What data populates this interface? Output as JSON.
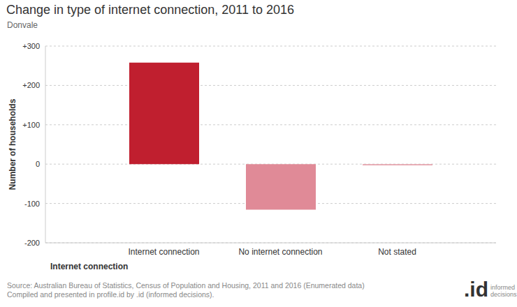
{
  "chart_data": {
    "type": "bar",
    "title": "Change in type of internet connection, 2011 to 2016",
    "subtitle": "Donvale",
    "x_label": "Internet connection",
    "y_label": "Number of households",
    "categories": [
      "Internet connection",
      "No internet connection",
      "Not stated"
    ],
    "values": [
      258,
      -116,
      -3
    ],
    "colors": [
      "#c01f2f",
      "#e08a97",
      "#e6a3ad"
    ],
    "ylim": [
      -200,
      300
    ],
    "yticks": [
      -200,
      -100,
      0,
      {
        "value": 100,
        "label": "+100"
      },
      {
        "value": 200,
        "label": "+200"
      },
      {
        "value": 300,
        "label": "+300"
      }
    ],
    "grid": true,
    "annotations": [
      "Source: Australian Bureau of Statistics, Census of Population and Housing, 2011 and 2016 (Enumerated data)",
      "Compiled and presented in profile.id by .id (informed decisions).",
      ".id",
      "informed decisions"
    ]
  }
}
